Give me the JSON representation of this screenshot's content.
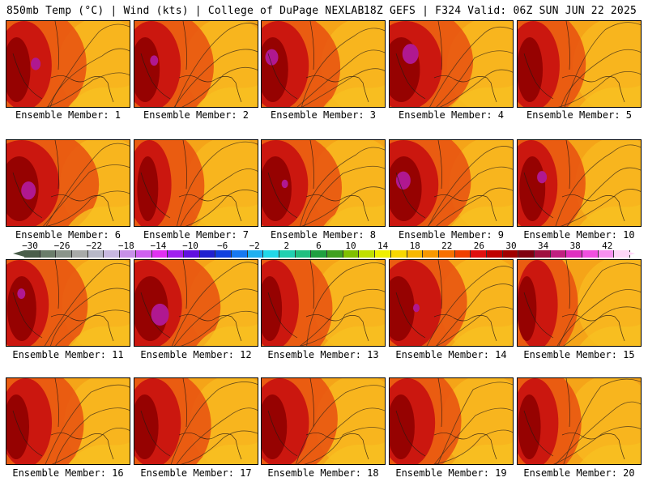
{
  "header": {
    "left": "850mb Temp (°C) | Wind (kts) | College of DuPage NEXLAB",
    "right": "18Z GEFS | F324 Valid: 06Z SUN JUN 22 2025"
  },
  "caption_prefix": "Ensemble Member: ",
  "members": [
    {
      "label": "Ensemble Member: 1",
      "hot": 0.55,
      "purple": 0.3
    },
    {
      "label": "Ensemble Member: 2",
      "hot": 0.6,
      "purple": 0.2
    },
    {
      "label": "Ensemble Member: 3",
      "hot": 0.65,
      "purple": 0.5
    },
    {
      "label": "Ensemble Member: 4",
      "hot": 0.85,
      "purple": 0.7
    },
    {
      "label": "Ensemble Member: 5",
      "hot": 0.5,
      "purple": 0.0
    },
    {
      "label": "Ensemble Member: 6",
      "hot": 0.9,
      "purple": 0.6
    },
    {
      "label": "Ensemble Member: 7",
      "hot": 0.35,
      "purple": 0.0
    },
    {
      "label": "Ensemble Member: 8",
      "hot": 0.7,
      "purple": 0.1
    },
    {
      "label": "Ensemble Member: 9",
      "hot": 0.8,
      "purple": 0.6
    },
    {
      "label": "Ensemble Member: 10",
      "hot": 0.5,
      "purple": 0.3
    },
    {
      "label": "Ensemble Member: 11",
      "hot": 0.6,
      "purple": 0.2
    },
    {
      "label": "Ensemble Member: 12",
      "hot": 0.8,
      "purple": 0.8
    },
    {
      "label": "Ensemble Member: 13",
      "hot": 0.45,
      "purple": 0.0
    },
    {
      "label": "Ensemble Member: 14",
      "hot": 0.7,
      "purple": 0.1
    },
    {
      "label": "Ensemble Member: 15",
      "hot": 0.3,
      "purple": 0.0
    },
    {
      "label": "Ensemble Member: 16",
      "hot": 0.5,
      "purple": 0.0
    },
    {
      "label": "Ensemble Member: 17",
      "hot": 0.55,
      "purple": 0.0
    },
    {
      "label": "Ensemble Member: 18",
      "hot": 0.6,
      "purple": 0.0
    },
    {
      "label": "Ensemble Member: 19",
      "hot": 0.55,
      "purple": 0.0
    },
    {
      "label": "Ensemble Member: 20",
      "hot": 0.4,
      "purple": 0.0
    }
  ],
  "colorbar": {
    "labels": [
      "−30",
      "−26",
      "−22",
      "−18",
      "−14",
      "−10",
      "−6",
      "−2",
      "2",
      "6",
      "10",
      "14",
      "18",
      "22",
      "26",
      "30",
      "34",
      "38",
      "42"
    ],
    "colors": [
      "#4a5e4a",
      "#6b7d6b",
      "#8a948a",
      "#a8aaa8",
      "#b8b8c8",
      "#c8b8e0",
      "#c890e8",
      "#d060f0",
      "#e030f0",
      "#a020f0",
      "#6010e0",
      "#2020d0",
      "#1040e0",
      "#1878f0",
      "#20b0f0",
      "#20d8e8",
      "#20d0b0",
      "#20c080",
      "#20a040",
      "#40a020",
      "#80c000",
      "#c0e000",
      "#f0f000",
      "#f8d800",
      "#f8b800",
      "#f89800",
      "#f87000",
      "#f04000",
      "#e01010",
      "#c00000",
      "#a00000",
      "#800010",
      "#a01040",
      "#c02080",
      "#e030c0",
      "#f050e0",
      "#f890f0",
      "#ffd6f8"
    ]
  }
}
